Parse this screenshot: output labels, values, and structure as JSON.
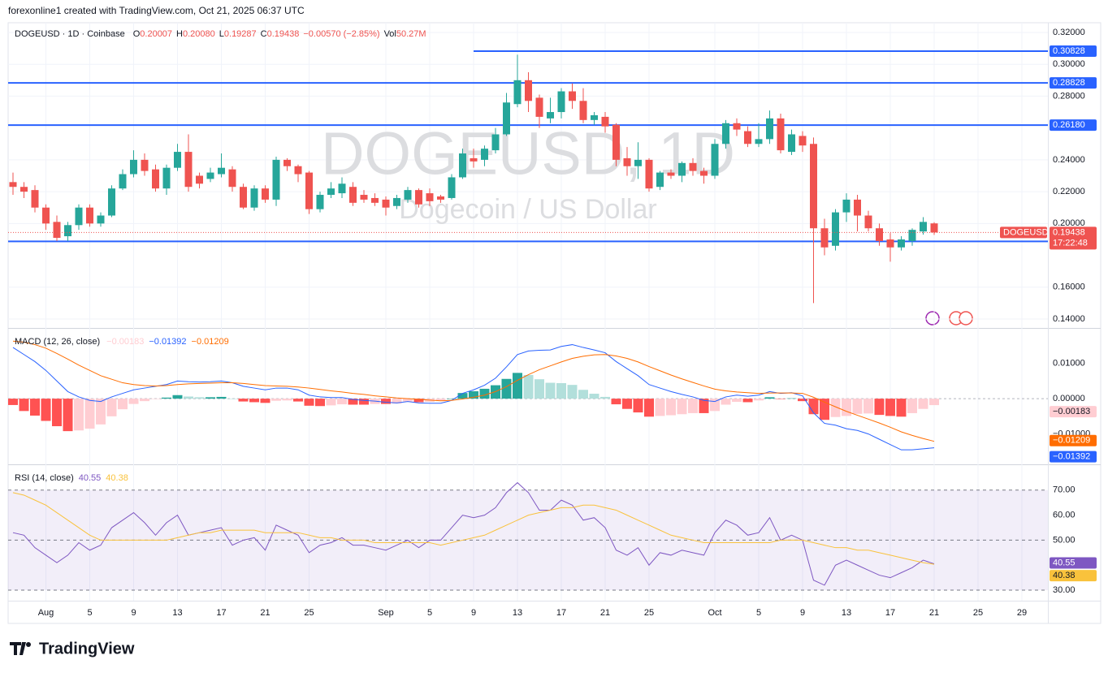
{
  "header": {
    "attribution": "forexonline1 created with TradingView.com, Oct 21, 2025 06:37 UTC"
  },
  "footer": {
    "brand": "TradingView"
  },
  "chart_data": [
    {
      "type": "candlestick",
      "title": "DOGEUSD · 1D · Coinbase",
      "ohlc_text": [
        {
          "key": "O",
          "text": "0.20007"
        },
        {
          "key": "H",
          "text": "0.20080"
        },
        {
          "key": "L",
          "text": "0.19287"
        },
        {
          "key": "C",
          "text": "0.19438"
        }
      ],
      "change": "−0.00570 (−2.85%)",
      "volume": {
        "key": "Vol",
        "text": "50.27M"
      },
      "watermark": "DOGEUSD, 1D",
      "watermark_subtitle": "Dogecoin / US Dollar",
      "symbol": "DOGEUSD",
      "countdown": "17:22:48",
      "categories": [
        null,
        null,
        null,
        "Aug",
        null,
        null,
        null,
        "5",
        null,
        null,
        null,
        "9",
        null,
        null,
        null,
        "13",
        null,
        null,
        null,
        "17",
        null,
        null,
        null,
        "21",
        null,
        null,
        null,
        "25",
        null,
        null,
        null,
        null,
        null,
        null,
        "Sep",
        null,
        null,
        null,
        "5",
        null,
        null,
        null,
        "9",
        null,
        null,
        null,
        "13",
        null,
        null,
        null,
        "17",
        null,
        null,
        null,
        "21",
        null,
        null,
        null,
        "25",
        null,
        null,
        null,
        null,
        null,
        "Oct",
        null,
        null,
        null,
        "5",
        null,
        null,
        null,
        "9",
        null,
        null,
        null,
        "13",
        null,
        null,
        null,
        "17",
        null,
        null,
        null,
        "21",
        null,
        null,
        null,
        "25",
        null,
        null,
        null,
        "29"
      ],
      "open": [
        0.226,
        0.223,
        0.221,
        0.21,
        0.201,
        0.192,
        0.199,
        0.21,
        0.2,
        0.205,
        0.222,
        0.231,
        0.24,
        0.234,
        0.222,
        0.235,
        0.245,
        0.23,
        0.228,
        0.231,
        0.234,
        0.223,
        0.21,
        0.222,
        0.215,
        0.24,
        0.236,
        0.232,
        0.209,
        0.218,
        0.219,
        0.223,
        0.218,
        0.216,
        0.215,
        0.211,
        0.215,
        0.221,
        0.219,
        0.217,
        0.216,
        0.229,
        0.241,
        0.24,
        0.246,
        0.256,
        0.275,
        0.29,
        0.279,
        0.266,
        0.27,
        0.283,
        0.277,
        0.265,
        0.267,
        0.262,
        0.241,
        0.236,
        0.24,
        0.223,
        0.232,
        0.23,
        0.238,
        0.233,
        0.23,
        0.25,
        0.263,
        0.258,
        0.25,
        0.253,
        0.266,
        0.245,
        0.255,
        0.25,
        0.197,
        0.186,
        0.207,
        0.215,
        0.205,
        0.197,
        0.19,
        0.185,
        0.189,
        0.195,
        0.20007,
        null,
        null,
        null,
        null,
        null,
        null,
        null,
        null
      ],
      "high": [
        0.232,
        0.226,
        0.224,
        0.212,
        0.205,
        0.201,
        0.212,
        0.212,
        0.207,
        0.224,
        0.234,
        0.246,
        0.244,
        0.237,
        0.237,
        0.25,
        0.256,
        0.232,
        0.235,
        0.244,
        0.236,
        0.225,
        0.224,
        0.224,
        0.242,
        0.241,
        0.237,
        0.233,
        0.22,
        0.226,
        0.229,
        0.226,
        0.221,
        0.219,
        0.217,
        0.218,
        0.223,
        0.222,
        0.222,
        0.218,
        0.231,
        0.247,
        0.247,
        0.249,
        0.26,
        0.282,
        0.306,
        0.295,
        0.281,
        0.279,
        0.285,
        0.288,
        0.285,
        0.27,
        0.27,
        0.263,
        0.248,
        0.251,
        0.241,
        0.233,
        0.234,
        0.239,
        0.241,
        0.235,
        0.253,
        0.265,
        0.266,
        0.261,
        0.263,
        0.271,
        0.269,
        0.259,
        0.258,
        0.254,
        0.203,
        0.209,
        0.219,
        0.218,
        0.208,
        0.2,
        0.194,
        0.192,
        0.197,
        0.204,
        0.2008,
        null,
        null,
        null,
        null,
        null,
        null,
        null,
        null
      ],
      "low": [
        0.218,
        0.216,
        0.207,
        0.196,
        0.189,
        0.189,
        0.196,
        0.198,
        0.198,
        0.204,
        0.221,
        0.229,
        0.23,
        0.22,
        0.218,
        0.233,
        0.22,
        0.222,
        0.226,
        0.229,
        0.22,
        0.209,
        0.208,
        0.213,
        0.211,
        0.233,
        0.226,
        0.206,
        0.207,
        0.216,
        0.216,
        0.211,
        0.213,
        0.211,
        0.205,
        0.209,
        0.213,
        0.21,
        0.211,
        0.213,
        0.215,
        0.228,
        0.235,
        0.236,
        0.244,
        0.255,
        0.273,
        0.27,
        0.26,
        0.263,
        0.266,
        0.272,
        0.263,
        0.262,
        0.257,
        0.236,
        0.23,
        0.228,
        0.22,
        0.221,
        0.228,
        0.226,
        0.23,
        0.225,
        0.228,
        0.247,
        0.255,
        0.248,
        0.248,
        0.25,
        0.244,
        0.243,
        0.245,
        0.15,
        0.18,
        0.183,
        0.201,
        0.195,
        0.195,
        0.186,
        0.176,
        0.183,
        0.186,
        0.193,
        0.19287,
        null,
        null,
        null,
        null,
        null,
        null,
        null,
        null
      ],
      "close": [
        0.223,
        0.22,
        0.21,
        0.2,
        0.191,
        0.199,
        0.21,
        0.2,
        0.205,
        0.222,
        0.231,
        0.24,
        0.233,
        0.222,
        0.235,
        0.245,
        0.223,
        0.225,
        0.232,
        0.235,
        0.223,
        0.21,
        0.222,
        0.215,
        0.24,
        0.236,
        0.231,
        0.209,
        0.218,
        0.222,
        0.225,
        0.213,
        0.215,
        0.213,
        0.21,
        0.216,
        0.221,
        0.212,
        0.214,
        0.215,
        0.229,
        0.244,
        0.239,
        0.247,
        0.256,
        0.276,
        0.29,
        0.277,
        0.267,
        0.27,
        0.283,
        0.277,
        0.265,
        0.268,
        0.261,
        0.24,
        0.236,
        0.24,
        0.222,
        0.232,
        0.23,
        0.238,
        0.233,
        0.23,
        0.25,
        0.263,
        0.259,
        0.25,
        0.253,
        0.266,
        0.246,
        0.256,
        0.249,
        0.197,
        0.185,
        0.207,
        0.215,
        0.205,
        0.197,
        0.189,
        0.185,
        0.19,
        0.196,
        0.201,
        0.19438,
        null,
        null,
        null,
        null,
        null,
        null,
        null,
        null
      ],
      "up_color": "#26a69a",
      "down_color": "#ef5350",
      "ylim": [
        0.1344,
        0.3261
      ],
      "yticks": [
        {
          "value": 0.32,
          "label": "0.32000"
        },
        {
          "value": 0.3,
          "label": "0.30000"
        },
        {
          "value": 0.28,
          "label": "0.28000"
        },
        {
          "value": 0.24,
          "label": "0.24000"
        },
        {
          "value": 0.22,
          "label": "0.22000"
        },
        {
          "value": 0.2,
          "label": "0.20000"
        },
        {
          "value": 0.16,
          "label": "0.16000"
        },
        {
          "value": 0.14,
          "label": "0.14000"
        }
      ],
      "levels": [
        0.30828,
        0.28828,
        {
          "value": 0.2618,
          "label": "0.26180"
        },
        0.18874
      ],
      "level_color": "#2962ff",
      "grid": true
    },
    {
      "type": "macd",
      "title": "MACD (12, 26, close)",
      "ylim": [
        -0.0186,
        0.0198
      ],
      "yticks": [
        {
          "value": 0.01,
          "label": "0.01000"
        },
        {
          "value": 0,
          "label": "0.00000"
        },
        {
          "value": -0.01,
          "label": "−0.01000"
        }
      ],
      "histogram": {
        "last_label": "−0.00183",
        "colors": [
          "#26a69a",
          "#b2dfdb",
          "#ff5252",
          "#ffcdd2"
        ],
        "values": [
          -0.0018,
          -0.0035,
          -0.0048,
          -0.0063,
          -0.0078,
          -0.0092,
          -0.009,
          -0.0085,
          -0.0073,
          -0.005,
          -0.003,
          -0.0015,
          -0.0007,
          -0.0001,
          0.0003,
          0.001,
          0.0006,
          0.0004,
          0.0004,
          0.0005,
          0.0,
          -0.0008,
          -0.001,
          -0.0012,
          -0.0006,
          -0.0005,
          -0.0008,
          -0.002,
          -0.0021,
          -0.0019,
          -0.0016,
          -0.0017,
          -0.0017,
          -0.0015,
          -0.0015,
          -0.0014,
          -0.0008,
          -0.001,
          -0.0009,
          -0.0007,
          0.0,
          0.0016,
          0.0021,
          0.0028,
          0.0038,
          0.0056,
          0.0073,
          0.0067,
          0.0055,
          0.0045,
          0.0044,
          0.0039,
          0.0025,
          0.0014,
          0.0005,
          -0.0016,
          -0.0029,
          -0.0039,
          -0.0051,
          -0.0049,
          -0.0047,
          -0.0044,
          -0.0041,
          -0.0041,
          -0.0035,
          -0.0017,
          -0.0009,
          -0.001,
          -0.0005,
          0.0004,
          -0.0001,
          0.0001,
          -0.0007,
          -0.0044,
          -0.006,
          -0.0052,
          -0.0049,
          -0.0043,
          -0.0042,
          -0.0046,
          -0.0049,
          -0.0051,
          -0.0041,
          -0.0029,
          -0.00183
        ]
      },
      "series": [
        {
          "color": "#2962ff",
          "last_label": "−0.01392",
          "values": [
            0.0145,
            0.0125,
            0.0105,
            0.008,
            0.005,
            0.002,
            0.0005,
            -0.0005,
            -0.0008,
            0.0005,
            0.0015,
            0.0025,
            0.003,
            0.0035,
            0.004,
            0.005,
            0.0048,
            0.0047,
            0.0048,
            0.005,
            0.0045,
            0.0035,
            0.003,
            0.0025,
            0.003,
            0.003,
            0.0025,
            0.001,
            0.0005,
            0.0003,
            0.0003,
            -0.0002,
            -0.0005,
            -0.0007,
            -0.001,
            -0.0012,
            -0.0008,
            -0.0012,
            -0.0013,
            -0.0013,
            -0.0005,
            0.0015,
            0.0025,
            0.0038,
            0.0058,
            0.009,
            0.0125,
            0.0135,
            0.0137,
            0.0138,
            0.0148,
            0.0153,
            0.0145,
            0.0138,
            0.013,
            0.0105,
            0.0085,
            0.0065,
            0.004,
            0.003,
            0.002,
            0.0012,
            0.0005,
            -0.0005,
            -0.0008,
            0.0005,
            0.001,
            0.0007,
            0.001,
            0.002,
            0.0015,
            0.0017,
            0.0008,
            -0.004,
            -0.007,
            -0.0075,
            -0.0085,
            -0.009,
            -0.01,
            -0.0115,
            -0.013,
            -0.0145,
            -0.0145,
            -0.0142,
            -0.01392
          ]
        },
        {
          "color": "#ff6d00",
          "last_label": "−0.01209",
          "values": [
            0.0163,
            0.016,
            0.0153,
            0.0143,
            0.0128,
            0.0112,
            0.0095,
            0.008,
            0.0065,
            0.0055,
            0.0045,
            0.004,
            0.0037,
            0.0036,
            0.0037,
            0.004,
            0.0042,
            0.0043,
            0.0044,
            0.0045,
            0.0045,
            0.0043,
            0.004,
            0.0037,
            0.0036,
            0.0035,
            0.0033,
            0.003,
            0.0026,
            0.0022,
            0.0019,
            0.0015,
            0.0012,
            0.0008,
            0.0005,
            0.0002,
            0.0,
            -0.0002,
            -0.0004,
            -0.0006,
            -0.0005,
            -0.0001,
            0.0004,
            0.001,
            0.002,
            0.0034,
            0.0052,
            0.0068,
            0.0082,
            0.0093,
            0.0104,
            0.0114,
            0.012,
            0.0124,
            0.0125,
            0.0121,
            0.0114,
            0.0104,
            0.0091,
            0.0079,
            0.0067,
            0.0056,
            0.0046,
            0.0036,
            0.0027,
            0.0022,
            0.0019,
            0.0017,
            0.0015,
            0.0016,
            0.0016,
            0.0016,
            0.0015,
            0.0004,
            -0.001,
            -0.0023,
            -0.0036,
            -0.0047,
            -0.0058,
            -0.0069,
            -0.0081,
            -0.0094,
            -0.0104,
            -0.0113,
            -0.01209
          ]
        }
      ]
    },
    {
      "type": "rsi",
      "title": "RSI (14, close)",
      "ylim": [
        25.8,
        80
      ],
      "yticks": [
        {
          "value": 70,
          "label": "70.00"
        },
        {
          "value": 60,
          "label": "60.00"
        },
        {
          "value": 50,
          "label": "50.00"
        },
        {
          "value": 30,
          "label": "30.00"
        }
      ],
      "levels": [
        70,
        50,
        30
      ],
      "band_color": "#7e57c2",
      "series": [
        {
          "color": "#7e57c2",
          "values": [
            53,
            52,
            47,
            44,
            41,
            44,
            49,
            46,
            48,
            55,
            58,
            61,
            57,
            52,
            57,
            60,
            52,
            53,
            54,
            55,
            48,
            50,
            51,
            46,
            56,
            54,
            52,
            45,
            48,
            49,
            51,
            48,
            48,
            47,
            46,
            48,
            50,
            47,
            50,
            50,
            55,
            60,
            59,
            60,
            63,
            69,
            73,
            69,
            62,
            62,
            66,
            64,
            58,
            59,
            55,
            46,
            44,
            47,
            40,
            45,
            44,
            46,
            45,
            44,
            53,
            58,
            56,
            52,
            53,
            59,
            50,
            52,
            50,
            34,
            32,
            40,
            42,
            40,
            38,
            36,
            35,
            37,
            39,
            42,
            40.55
          ]
        },
        {
          "color": "#f9c23c",
          "values": [
            69,
            68,
            66,
            64,
            61,
            58,
            55,
            52,
            50,
            50,
            50,
            50,
            50,
            50,
            50,
            51,
            52,
            53,
            53,
            54,
            54,
            54,
            54,
            53,
            53,
            53,
            53,
            52,
            51,
            51,
            50,
            50,
            50,
            49,
            49,
            49,
            49,
            49,
            49,
            48,
            49,
            50,
            51,
            52,
            54,
            56,
            58,
            60,
            61,
            62,
            63,
            63,
            64,
            64,
            63,
            62,
            60,
            58,
            56,
            54,
            52,
            51,
            50,
            49,
            49,
            49,
            49,
            49,
            49,
            49,
            50,
            50,
            50,
            49,
            48,
            47,
            47,
            46,
            46,
            45,
            44,
            43,
            42,
            41,
            40.38
          ]
        }
      ]
    }
  ]
}
